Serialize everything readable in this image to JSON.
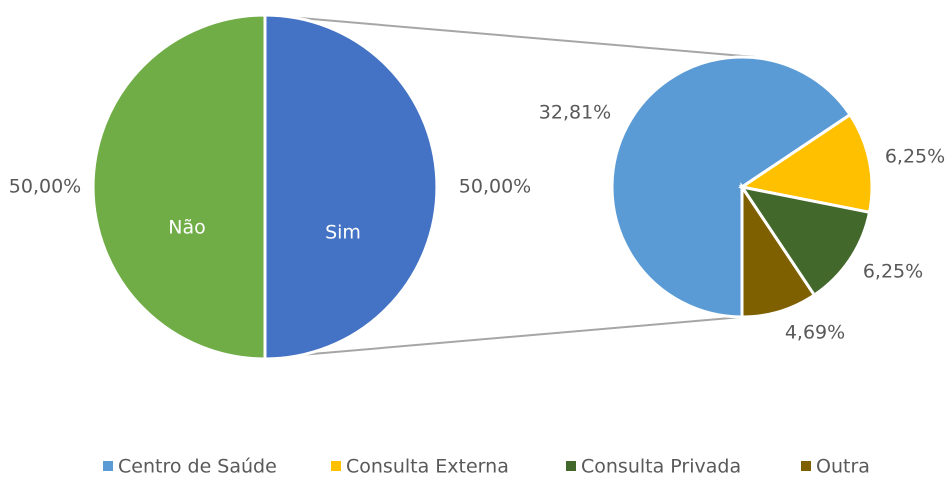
{
  "chart_data": [
    {
      "type": "pie",
      "categories": [
        "Não",
        "Sim"
      ],
      "values": [
        50,
        50
      ],
      "value_labels": [
        "50,00%",
        "50,00%"
      ],
      "colors": [
        "#70ad47",
        "#4472c4"
      ]
    },
    {
      "type": "pie",
      "categories": [
        "Centro de Saúde",
        "Consulta Externa",
        "Consulta Privada",
        "Outra"
      ],
      "values": [
        32.81,
        6.25,
        6.25,
        4.69
      ],
      "value_labels": [
        "32,81%",
        "6,25%",
        "6,25%",
        "4,69%"
      ],
      "colors": [
        "#5b9bd5",
        "#ffc000",
        "#43682b",
        "#7f6000"
      ],
      "legend": "bottom"
    }
  ]
}
